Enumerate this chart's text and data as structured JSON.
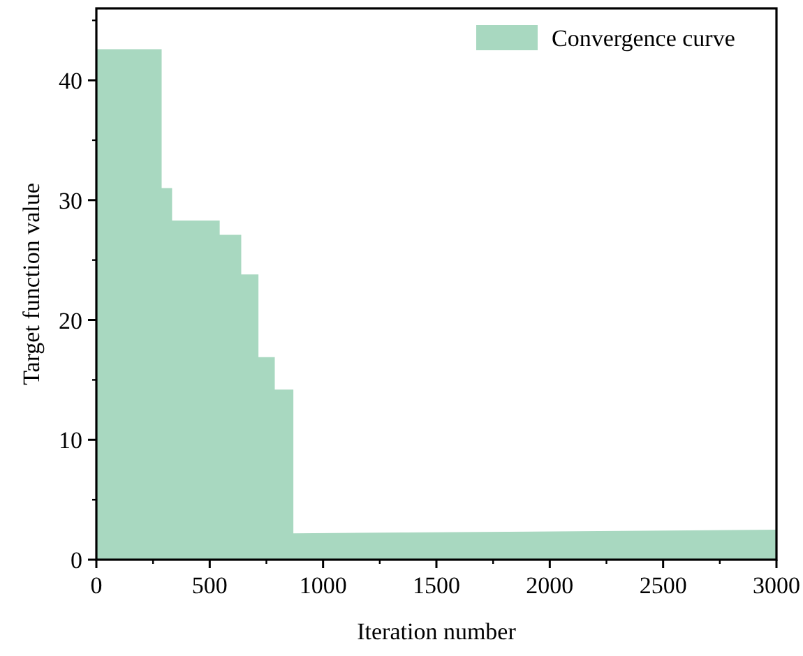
{
  "chart_data": {
    "type": "area",
    "xlabel": "Iteration number",
    "ylabel": "Target function value",
    "x": [
      0,
      288,
      288,
      334,
      334,
      544,
      544,
      639,
      639,
      715,
      715,
      787,
      787,
      869,
      869,
      3000
    ],
    "series": [
      {
        "name": "Convergence curve",
        "color": "#a8d8c0",
        "values": [
          42.6,
          42.6,
          31.0,
          31.0,
          28.3,
          28.3,
          27.1,
          27.1,
          23.8,
          23.8,
          16.9,
          16.9,
          14.2,
          14.2,
          2.2,
          2.5
        ]
      }
    ],
    "xlim": [
      0,
      3000
    ],
    "xticks": [
      0,
      500,
      1000,
      1500,
      2000,
      2500,
      3000
    ],
    "ylim": [
      0,
      46
    ],
    "yticks": [
      0,
      10,
      20,
      30,
      40
    ],
    "legend": "top right"
  }
}
